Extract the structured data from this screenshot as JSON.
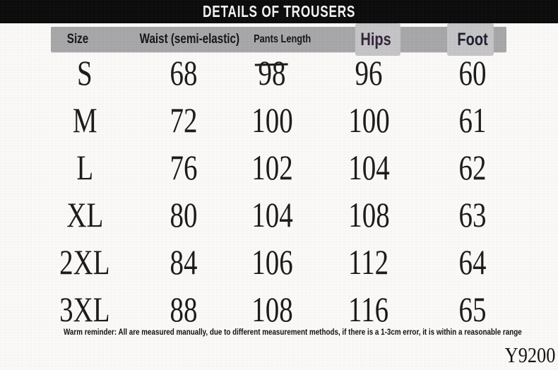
{
  "title": "DETAILS OF TROUSERS",
  "columns": {
    "size": "Size",
    "waist": "Waist (semi-elastic)",
    "length": "Pants Length",
    "hips": "Hips",
    "foot": "Foot"
  },
  "rows": [
    {
      "size": "S",
      "waist": "68",
      "length": "98",
      "hips": "96",
      "foot": "60",
      "length_strikethrough": true
    },
    {
      "size": "M",
      "waist": "72",
      "length": "100",
      "hips": "100",
      "foot": "61"
    },
    {
      "size": "L",
      "waist": "76",
      "length": "102",
      "hips": "104",
      "foot": "62"
    },
    {
      "size": "XL",
      "waist": "80",
      "length": "104",
      "hips": "108",
      "foot": "63"
    },
    {
      "size": "2XL",
      "waist": "84",
      "length": "106",
      "hips": "112",
      "foot": "64"
    },
    {
      "size": "3XL",
      "waist": "88",
      "length": "108",
      "hips": "116",
      "foot": "65"
    }
  ],
  "note": "Warm reminder: All are measured manually, due to different measurement methods, if there is a 1-3cm error, it is within a reasonable range",
  "model_code": "Y9200",
  "colors": {
    "title_bar": "#0b0b0b",
    "title_text": "#f5f5f5",
    "header_bar": "#a7a7a9",
    "header_patch": "#c5c5c7",
    "header_text": "#141414",
    "hips_text": "#342338",
    "foot_text": "#1d1d30",
    "body_text": "#1a1a1a",
    "background": "#fbfaf8"
  },
  "chart_data": {
    "type": "table",
    "title": "DETAILS OF TROUSERS",
    "columns": [
      "Size",
      "Waist (semi-elastic)",
      "Pants Length",
      "Hips",
      "Foot"
    ],
    "rows": [
      [
        "S",
        68,
        98,
        96,
        60
      ],
      [
        "M",
        72,
        100,
        100,
        61
      ],
      [
        "L",
        76,
        102,
        104,
        62
      ],
      [
        "XL",
        80,
        104,
        108,
        63
      ],
      [
        "2XL",
        84,
        106,
        112,
        64
      ],
      [
        "3XL",
        88,
        108,
        116,
        65
      ]
    ],
    "annotations": {
      "strikethrough_cell": {
        "row": "S",
        "column": "Pants Length",
        "value": 98
      },
      "footnote": "Warm reminder: All are measured manually, due to different measurement methods, if there is a 1-3cm error, it is within a reasonable range",
      "model_code": "Y9200"
    },
    "layout": {
      "header_background": "#a7a7a9",
      "title_background": "#0b0b0b",
      "units": "cm (implied)"
    }
  }
}
